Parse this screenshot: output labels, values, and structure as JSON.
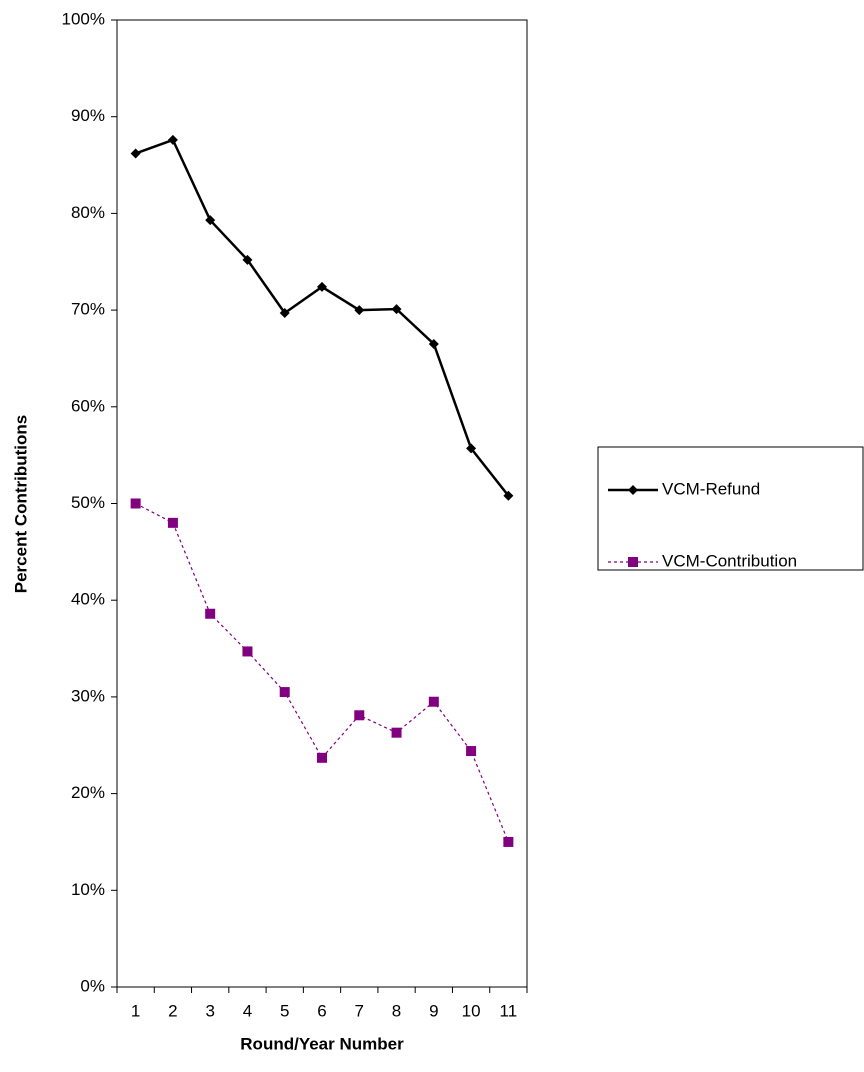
{
  "chart_data": {
    "type": "line",
    "x_label": "Round/Year Number",
    "y_label": "Percent Contributions",
    "categories": [
      "1",
      "2",
      "3",
      "4",
      "5",
      "6",
      "7",
      "8",
      "9",
      "10",
      "11"
    ],
    "series": [
      {
        "name": "VCM-Refund",
        "color": "#000000",
        "marker": "diamond",
        "dash": "solid",
        "values": [
          86.2,
          87.6,
          79.3,
          75.2,
          69.7,
          72.4,
          70.0,
          70.1,
          66.5,
          55.7,
          50.8
        ]
      },
      {
        "name": "VCM-Contribution",
        "color": "#800080",
        "marker": "square",
        "dash": "dotted",
        "values": [
          50.0,
          48.0,
          38.6,
          34.7,
          30.5,
          23.7,
          28.1,
          26.3,
          29.5,
          24.4,
          15.0
        ]
      }
    ],
    "ylim": [
      0,
      100
    ],
    "yticks": [
      {
        "value": 0,
        "label": "0%"
      },
      {
        "value": 10,
        "label": "10%"
      },
      {
        "value": 20,
        "label": "20%"
      },
      {
        "value": 30,
        "label": "30%"
      },
      {
        "value": 40,
        "label": "40%"
      },
      {
        "value": 50,
        "label": "50%"
      },
      {
        "value": 60,
        "label": "60%"
      },
      {
        "value": 70,
        "label": "70%"
      },
      {
        "value": 80,
        "label": "80%"
      },
      {
        "value": 90,
        "label": "90%"
      },
      {
        "value": 100,
        "label": "100%"
      }
    ],
    "legend": "right"
  }
}
